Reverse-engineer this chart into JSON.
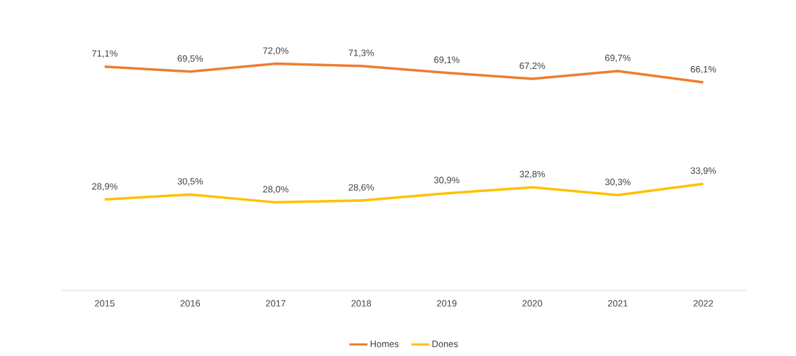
{
  "chart_data": {
    "type": "line",
    "categories": [
      "2015",
      "2016",
      "2017",
      "2018",
      "2019",
      "2020",
      "2021",
      "2022"
    ],
    "series": [
      {
        "name": "Homes",
        "color": "#ed7d31",
        "values": [
          71.1,
          69.5,
          72.0,
          71.3,
          69.1,
          67.2,
          69.7,
          66.1
        ],
        "value_labels": [
          "71,1%",
          "69,5%",
          "72,0%",
          "71,3%",
          "69,1%",
          "67,2%",
          "69,7%",
          "66,1%"
        ]
      },
      {
        "name": "Dones",
        "color": "#ffc000",
        "values": [
          28.9,
          30.5,
          28.0,
          28.6,
          30.9,
          32.8,
          30.3,
          33.9
        ],
        "value_labels": [
          "28,9%",
          "30,5%",
          "28,0%",
          "28,6%",
          "30,9%",
          "32,8%",
          "30,3%",
          "33,9%"
        ]
      }
    ],
    "legend": "bottom",
    "grid": false,
    "marker": "none",
    "line_style": "solid"
  }
}
